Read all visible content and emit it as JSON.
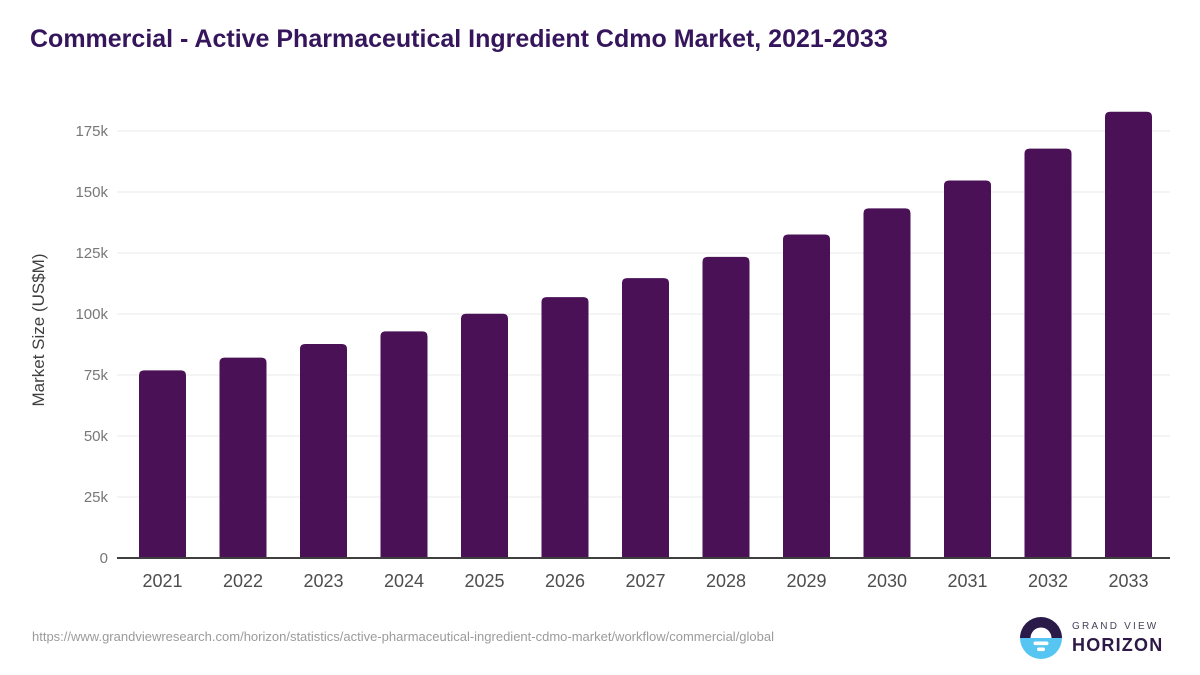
{
  "title": "Commercial - Active Pharmaceutical Ingredient Cdmo Market, 2021-2033",
  "chart_data": {
    "type": "bar",
    "title": "Commercial - Active Pharmaceutical Ingredient Cdmo Market, 2021-2033",
    "categories": [
      "2021",
      "2022",
      "2023",
      "2024",
      "2025",
      "2026",
      "2027",
      "2028",
      "2029",
      "2030",
      "2031",
      "2032",
      "2033"
    ],
    "values": [
      76900,
      82100,
      87700,
      92900,
      100100,
      106900,
      114700,
      123400,
      132600,
      143300,
      154700,
      167800,
      182900
    ],
    "xlabel": "",
    "ylabel": "Market Size (US$M)",
    "yticks": [
      0,
      25000,
      50000,
      75000,
      100000,
      125000,
      150000,
      175000
    ],
    "ytick_labels": [
      "0",
      "25k",
      "50k",
      "75k",
      "100k",
      "125k",
      "150k",
      "175k"
    ],
    "ylim": [
      0,
      190000
    ],
    "grid": true,
    "legend_position": "none",
    "bar_color": "#4A1157"
  },
  "colors": {
    "title_text": "#35155B",
    "bar": "#4A1157",
    "gridline": "#E9E9E9",
    "axis_line": "#3F3F3F",
    "ytick_text": "#777777",
    "xtick_text": "#4D4D4D",
    "url_text": "#9B9B9B",
    "logo_dark": "#2A1A4A",
    "logo_blue": "#56C5F2"
  },
  "footer": {
    "source_url": "https://www.grandviewresearch.com/horizon/statistics/active-pharmaceutical-ingredient-cdmo-market/workflow/commercial/global",
    "logo": {
      "line1": "GRAND VIEW",
      "line2": "HORIZON"
    }
  }
}
